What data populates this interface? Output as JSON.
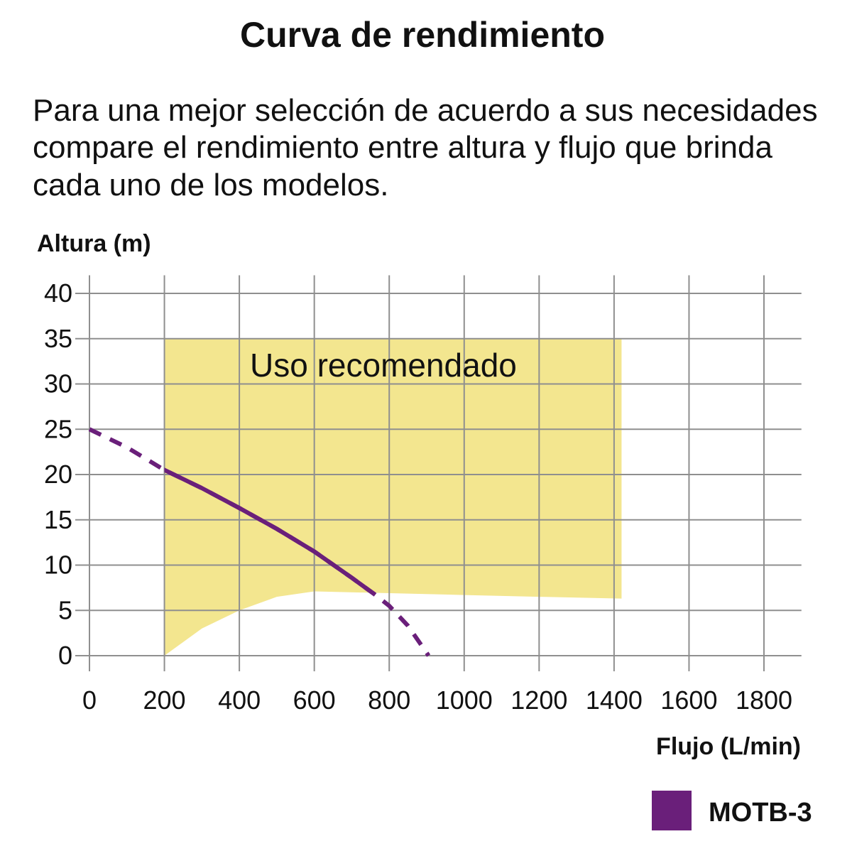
{
  "chart_data": {
    "type": "line",
    "title": "Curva de rendimiento",
    "subtitle": [
      "Para una mejor selección de acuerdo a sus necesidades",
      "compare el rendimiento entre altura y flujo que brinda",
      "cada uno de los modelos."
    ],
    "y_label": "Altura (m)",
    "x_label": "Flujo (L/min)",
    "xlim": [
      0,
      1900
    ],
    "ylim": [
      0,
      42
    ],
    "xticks": [
      0,
      200,
      400,
      600,
      800,
      1000,
      1200,
      1400,
      1600,
      1800
    ],
    "yticks": [
      0,
      5,
      10,
      15,
      20,
      25,
      30,
      35,
      40
    ],
    "grid": true,
    "area": {
      "label": "Uso recomendado",
      "color": "#f3e68f",
      "x": [
        200,
        300,
        400,
        500,
        600,
        800,
        1000,
        1200,
        1420
      ],
      "upper": [
        35,
        35,
        35,
        35,
        35,
        35,
        35,
        35,
        35
      ],
      "lower": [
        0,
        3,
        5,
        6.5,
        7.1,
        6.9,
        6.7,
        6.5,
        6.3
      ]
    },
    "x": [
      0,
      100,
      200,
      300,
      400,
      500,
      600,
      700,
      760,
      800,
      850,
      905
    ],
    "series": [
      {
        "name": "MOTB-3",
        "color": "#6a1f7a",
        "values": [
          25,
          23,
          20.5,
          18.5,
          16.3,
          14,
          11.5,
          8.6,
          6.8,
          5.5,
          3.3,
          0
        ]
      }
    ],
    "legend": "bottom-right"
  }
}
